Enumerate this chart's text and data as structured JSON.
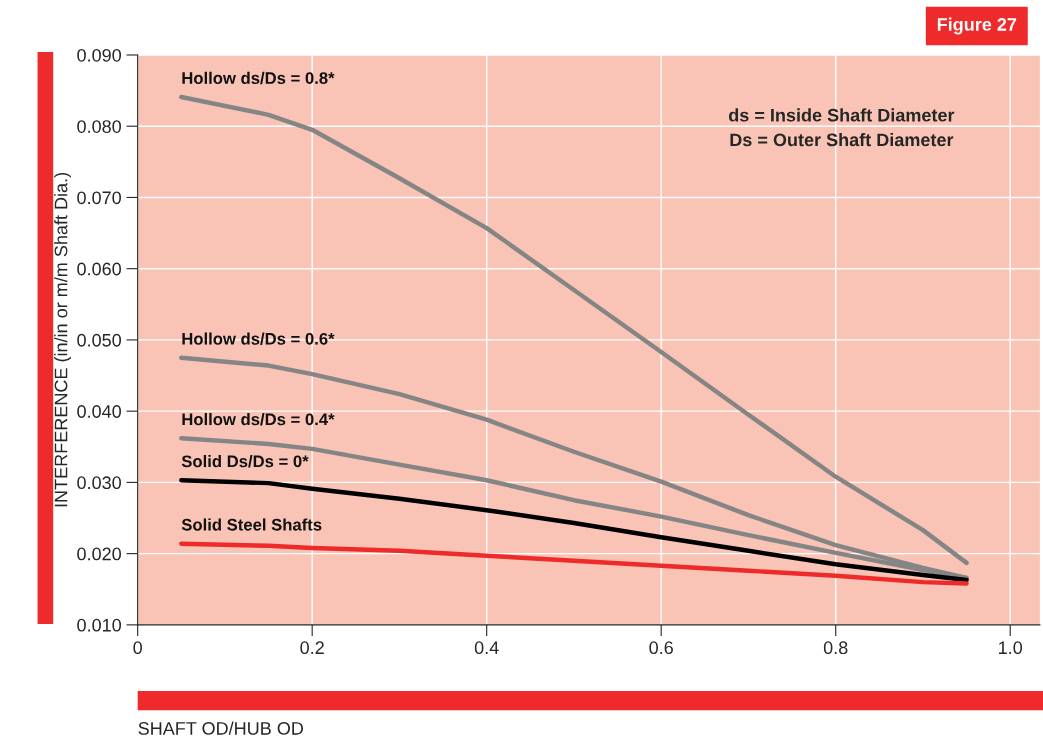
{
  "chart_data": {
    "type": "line",
    "title": "Figure 27",
    "xlabel": "SHAFT OD/HUB OD",
    "ylabel": "INTERFERENCE (in/in or m/m Shaft Dia.)",
    "annotations": [
      "ds = Inside Shaft Diameter\nDs = Outer Shaft Diameter"
    ],
    "x": [
      0.05,
      0.15,
      0.2,
      0.3,
      0.4,
      0.5,
      0.6,
      0.7,
      0.8,
      0.9,
      0.95
    ],
    "series": [
      {
        "name": "Hollow ds/Ds = 0.8*",
        "color": "#858585",
        "values": [
          0.0841,
          0.0816,
          0.0795,
          0.0727,
          0.0657,
          0.057,
          0.0483,
          0.0395,
          0.0308,
          0.0233,
          0.0187
        ]
      },
      {
        "name": "Hollow ds/Ds = 0.6*",
        "color": "#858585",
        "values": [
          0.0475,
          0.0464,
          0.0452,
          0.0424,
          0.0388,
          0.0343,
          0.0301,
          0.0254,
          0.0212,
          0.018,
          0.0166
        ]
      },
      {
        "name": "Hollow ds/Ds = 0.4*",
        "color": "#858585",
        "values": [
          0.0362,
          0.0354,
          0.0347,
          0.0325,
          0.0303,
          0.0275,
          0.0252,
          0.0226,
          0.0201,
          0.0177,
          0.0166
        ]
      },
      {
        "name": "Solid Ds/Ds = 0*",
        "color": "#000000",
        "values": [
          0.0303,
          0.0299,
          0.0291,
          0.0277,
          0.0261,
          0.0243,
          0.0223,
          0.0204,
          0.0185,
          0.017,
          0.0163
        ]
      },
      {
        "name": "Solid Steel Shafts",
        "color": "#ee2a2a",
        "values": [
          0.0214,
          0.0211,
          0.0208,
          0.0204,
          0.0197,
          0.019,
          0.0183,
          0.0176,
          0.0169,
          0.016,
          0.0158
        ]
      }
    ],
    "xlim": [
      0,
      1.034
    ],
    "ylim": [
      0.01,
      0.09
    ],
    "xticks": [
      0,
      0.2,
      0.4,
      0.6,
      0.8,
      {
        "value": 1.0,
        "label": "1.0"
      }
    ],
    "yticks": [
      {
        "value": 0.01,
        "label": "0.010"
      },
      {
        "value": 0.02,
        "label": "0.020"
      },
      {
        "value": 0.03,
        "label": "0.030"
      },
      {
        "value": 0.04,
        "label": "0.040"
      },
      {
        "value": 0.05,
        "label": "0.050"
      },
      {
        "value": 0.06,
        "label": "0.060"
      },
      {
        "value": 0.07,
        "label": "0.070"
      },
      {
        "value": 0.08,
        "label": "0.080"
      },
      {
        "value": 0.09,
        "label": "0.090"
      }
    ],
    "grid": true,
    "legend": false,
    "line_style": "solid",
    "marker": "none"
  }
}
